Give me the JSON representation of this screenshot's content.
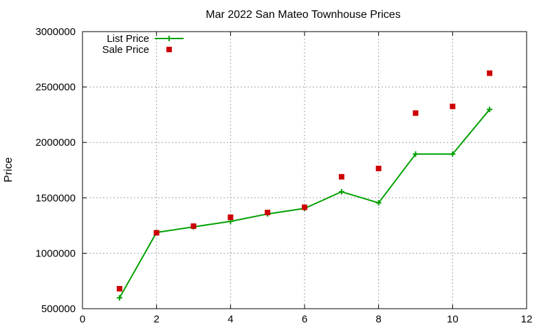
{
  "chart_data": {
    "type": "line",
    "title": "Mar 2022 San Mateo Townhouse Prices",
    "xlabel": "",
    "ylabel": "Price",
    "xlim": [
      0,
      12
    ],
    "ylim": [
      500000,
      3000000
    ],
    "xticks": [
      0,
      2,
      4,
      6,
      8,
      10,
      12
    ],
    "yticks": [
      500000,
      1000000,
      1500000,
      2000000,
      2500000,
      3000000
    ],
    "grid": true,
    "legend_position": "top-left",
    "series": [
      {
        "name": "List Price",
        "style": "line-with-plus-markers",
        "color": "#00a000",
        "x": [
          1,
          2,
          3,
          4,
          5,
          6,
          7,
          8,
          9,
          10,
          11
        ],
        "y": [
          598000,
          1188000,
          1238000,
          1288000,
          1355000,
          1405000,
          1555000,
          1455000,
          1895000,
          1895000,
          2298000
        ]
      },
      {
        "name": "Sale Price",
        "style": "square-markers",
        "color": "#cc0000",
        "x": [
          1,
          2,
          3,
          4,
          5,
          6,
          7,
          8,
          9,
          10,
          11
        ],
        "y": [
          680000,
          1185000,
          1245000,
          1325000,
          1368000,
          1415000,
          1690000,
          1765000,
          2265000,
          2325000,
          2625000
        ]
      }
    ]
  }
}
